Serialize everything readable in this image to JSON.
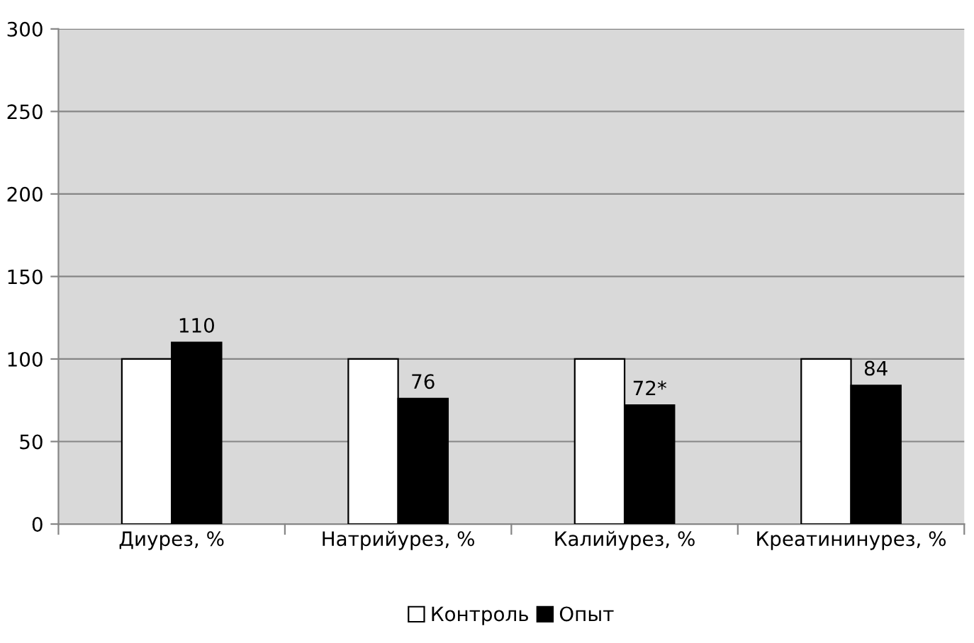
{
  "chart_data": {
    "type": "bar",
    "categories": [
      "Диурез, %",
      "Натрийурез, %",
      "Калийурез, %",
      "Креатининурез, %"
    ],
    "series": [
      {
        "name": "Контроль",
        "color": "#ffffff",
        "values": [
          100,
          100,
          100,
          100
        ]
      },
      {
        "name": "Опыт",
        "color": "#000000",
        "values": [
          110,
          76,
          72,
          84
        ],
        "value_labels": [
          "110",
          "76",
          "72*",
          "84"
        ]
      }
    ],
    "ylim": [
      0,
      300
    ],
    "yticks": [
      0,
      50,
      100,
      150,
      200,
      250,
      300
    ],
    "grid": "y",
    "legend": "bottom"
  }
}
